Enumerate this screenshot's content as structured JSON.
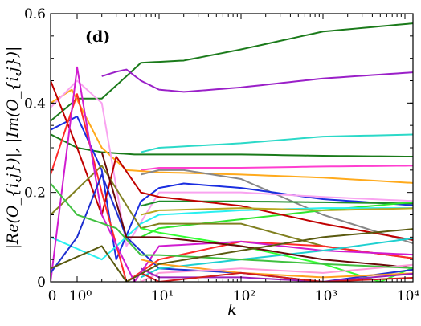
{
  "chart_data": {
    "type": "line",
    "panel_label": "(d)",
    "xlabel": "k",
    "ylabel": "|Re(O_{i,j})|, |Im(O_{i,j})|",
    "xscale": "symlog (linear 0–1, log above)",
    "xlim": [
      0,
      16000
    ],
    "ylim": [
      0,
      0.6
    ],
    "grid": false,
    "legend": "none",
    "x_ticks": [
      {
        "value": 0,
        "label": "0"
      },
      {
        "value": 1,
        "label": "10⁰"
      },
      {
        "value": 10,
        "label": "10¹"
      },
      {
        "value": 100,
        "label": "10²"
      },
      {
        "value": 1000,
        "label": "10³"
      },
      {
        "value": 10000,
        "label": "10⁴"
      }
    ],
    "y_ticks": [
      {
        "value": 0,
        "label": "0"
      },
      {
        "value": 0.2,
        "label": "0.2"
      },
      {
        "value": 0.4,
        "label": "0.4"
      },
      {
        "value": 0.6,
        "label": "0.6"
      }
    ],
    "series": [
      {
        "color": "#1a7a1a",
        "points": [
          [
            0,
            0.36
          ],
          [
            1,
            0.41
          ],
          [
            2,
            0.41
          ],
          [
            4,
            0.46
          ],
          [
            6,
            0.49
          ],
          [
            20,
            0.495
          ],
          [
            100,
            0.52
          ],
          [
            1000,
            0.56
          ],
          [
            16000,
            0.58
          ]
        ]
      },
      {
        "color": "#9a1fc8",
        "points": [
          [
            2,
            0.46
          ],
          [
            3,
            0.47
          ],
          [
            4,
            0.475
          ],
          [
            6,
            0.45
          ],
          [
            10,
            0.43
          ],
          [
            20,
            0.425
          ],
          [
            100,
            0.435
          ],
          [
            1000,
            0.455
          ],
          [
            16000,
            0.47
          ]
        ]
      },
      {
        "color": "#2bd9c8",
        "points": [
          [
            6,
            0.29
          ],
          [
            10,
            0.3
          ],
          [
            100,
            0.31
          ],
          [
            1000,
            0.325
          ],
          [
            16000,
            0.33
          ]
        ]
      },
      {
        "color": "#1a7a1a",
        "points": [
          [
            0,
            0.33
          ],
          [
            1,
            0.3
          ],
          [
            2,
            0.29
          ],
          [
            5,
            0.285
          ],
          [
            10,
            0.285
          ],
          [
            100,
            0.285
          ],
          [
            1000,
            0.282
          ],
          [
            16000,
            0.28
          ]
        ]
      },
      {
        "color": "#ff3fd0",
        "points": [
          [
            6,
            0.25
          ],
          [
            10,
            0.255
          ],
          [
            100,
            0.255
          ],
          [
            1000,
            0.258
          ],
          [
            16000,
            0.26
          ]
        ]
      },
      {
        "color": "#ffaa1c",
        "points": [
          [
            0,
            0.4
          ],
          [
            0.8,
            0.43
          ],
          [
            2,
            0.3
          ],
          [
            4,
            0.25
          ],
          [
            10,
            0.245
          ],
          [
            100,
            0.24
          ],
          [
            1000,
            0.233
          ],
          [
            16000,
            0.22
          ]
        ]
      },
      {
        "color": "#888888",
        "points": [
          [
            6,
            0.24
          ],
          [
            10,
            0.25
          ],
          [
            20,
            0.25
          ],
          [
            100,
            0.23
          ],
          [
            1000,
            0.15
          ],
          [
            16000,
            0.08
          ]
        ]
      },
      {
        "color": "#1a2ee0",
        "points": [
          [
            0,
            0.34
          ],
          [
            1,
            0.37
          ],
          [
            2,
            0.25
          ],
          [
            3,
            0.05
          ],
          [
            6,
            0.18
          ],
          [
            10,
            0.21
          ],
          [
            20,
            0.22
          ],
          [
            100,
            0.21
          ],
          [
            1000,
            0.185
          ],
          [
            16000,
            0.17
          ]
        ]
      },
      {
        "color": "#f9a3f0",
        "points": [
          [
            0,
            0.39
          ],
          [
            1,
            0.45
          ],
          [
            2,
            0.4
          ],
          [
            4,
            0.08
          ],
          [
            10,
            0.2
          ],
          [
            100,
            0.2
          ],
          [
            1000,
            0.19
          ],
          [
            16000,
            0.18
          ]
        ]
      },
      {
        "color": "#1e8c28",
        "points": [
          [
            6,
            0.17
          ],
          [
            10,
            0.18
          ],
          [
            100,
            0.18
          ],
          [
            1000,
            0.178
          ],
          [
            16000,
            0.175
          ]
        ]
      },
      {
        "color": "#2ee62e",
        "points": [
          [
            6,
            0.1
          ],
          [
            10,
            0.12
          ],
          [
            100,
            0.14
          ],
          [
            1000,
            0.16
          ],
          [
            16000,
            0.18
          ]
        ]
      },
      {
        "color": "#28f0f0",
        "points": [
          [
            0,
            0.1
          ],
          [
            2,
            0.05
          ],
          [
            6,
            0.13
          ],
          [
            10,
            0.15
          ],
          [
            100,
            0.16
          ],
          [
            1000,
            0.165
          ],
          [
            16000,
            0.165
          ]
        ]
      },
      {
        "color": "#c00000",
        "points": [
          [
            0,
            0.45
          ],
          [
            1,
            0.3
          ],
          [
            2,
            0.15
          ],
          [
            3,
            0.28
          ],
          [
            6,
            0.2
          ],
          [
            10,
            0.19
          ],
          [
            100,
            0.17
          ],
          [
            1000,
            0.13
          ],
          [
            16000,
            0.09
          ]
        ]
      },
      {
        "color": "#808020",
        "points": [
          [
            0,
            0.15
          ],
          [
            2,
            0.26
          ],
          [
            6,
            0.12
          ],
          [
            10,
            0.13
          ],
          [
            100,
            0.13
          ],
          [
            1000,
            0.08
          ],
          [
            16000,
            0.05
          ]
        ]
      },
      {
        "color": "#b8a820",
        "points": [
          [
            6,
            0.15
          ],
          [
            10,
            0.16
          ],
          [
            100,
            0.165
          ],
          [
            1000,
            0.16
          ],
          [
            16000,
            0.165
          ]
        ]
      },
      {
        "color": "#33ff33",
        "points": [
          [
            6,
            0.12
          ],
          [
            10,
            0.11
          ],
          [
            100,
            0.08
          ],
          [
            1000,
            0.04
          ],
          [
            5000,
            0.0
          ],
          [
            16000,
            0.04
          ]
        ]
      },
      {
        "color": "#ff2a2a",
        "points": [
          [
            0,
            0.24
          ],
          [
            1,
            0.42
          ],
          [
            2,
            0.2
          ],
          [
            4,
            0.0
          ],
          [
            10,
            0.05
          ],
          [
            100,
            0.09
          ],
          [
            1000,
            0.08
          ],
          [
            16000,
            0.05
          ]
        ]
      },
      {
        "color": "#d01cd0",
        "points": [
          [
            0,
            0.0
          ],
          [
            1,
            0.48
          ],
          [
            2,
            0.15
          ],
          [
            5,
            0.0
          ],
          [
            10,
            0.08
          ],
          [
            100,
            0.09
          ],
          [
            1000,
            0.07
          ],
          [
            16000,
            0.06
          ]
        ]
      },
      {
        "color": "#1e2fd0",
        "points": [
          [
            0,
            0.02
          ],
          [
            1,
            0.1
          ],
          [
            2,
            0.24
          ],
          [
            4,
            0.1
          ],
          [
            10,
            0.03
          ],
          [
            100,
            0.02
          ],
          [
            1000,
            0.0
          ],
          [
            16000,
            0.03
          ]
        ]
      },
      {
        "color": "#1ed0d0",
        "points": [
          [
            6,
            0.01
          ],
          [
            10,
            0.03
          ],
          [
            100,
            0.05
          ],
          [
            1000,
            0.07
          ],
          [
            16000,
            0.1
          ]
        ]
      },
      {
        "color": "#ffa020",
        "points": [
          [
            6,
            0.05
          ],
          [
            10,
            0.04
          ],
          [
            100,
            0.02
          ],
          [
            1000,
            0.01
          ],
          [
            16000,
            0.02
          ]
        ]
      },
      {
        "color": "#6a0a0a",
        "points": [
          [
            2,
            0.29
          ],
          [
            4,
            0.1
          ],
          [
            10,
            0.1
          ],
          [
            100,
            0.08
          ],
          [
            1000,
            0.05
          ],
          [
            16000,
            0.03
          ]
        ]
      },
      {
        "color": "#ff9ad8",
        "points": [
          [
            6,
            0.0
          ],
          [
            10,
            0.02
          ],
          [
            100,
            0.03
          ],
          [
            1000,
            0.02
          ],
          [
            16000,
            0.04
          ]
        ]
      },
      {
        "color": "#9a20b8",
        "points": [
          [
            6,
            0.03
          ],
          [
            10,
            0.01
          ],
          [
            100,
            0.01
          ],
          [
            1000,
            0.0
          ],
          [
            16000,
            0.02
          ]
        ]
      },
      {
        "color": "#d01c1c",
        "points": [
          [
            6,
            0.02
          ],
          [
            10,
            0.0
          ],
          [
            100,
            0.02
          ],
          [
            1000,
            0.0
          ],
          [
            16000,
            0.01
          ]
        ]
      },
      {
        "color": "#40c040",
        "points": [
          [
            0,
            0.22
          ],
          [
            1,
            0.15
          ],
          [
            3,
            0.12
          ],
          [
            6,
            0.06
          ],
          [
            10,
            0.06
          ],
          [
            100,
            0.05
          ],
          [
            1000,
            0.04
          ],
          [
            16000,
            0.03
          ]
        ]
      },
      {
        "color": "#5a5a10",
        "points": [
          [
            0,
            0.03
          ],
          [
            2,
            0.08
          ],
          [
            4,
            0.0
          ],
          [
            10,
            0.04
          ],
          [
            100,
            0.07
          ],
          [
            1000,
            0.1
          ],
          [
            16000,
            0.12
          ]
        ]
      }
    ]
  }
}
